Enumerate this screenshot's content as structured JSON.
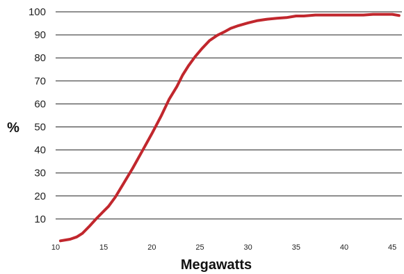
{
  "chart_data": {
    "type": "line",
    "title": "",
    "xlabel": "Megawatts",
    "ylabel": "%",
    "xlim": [
      10,
      46
    ],
    "ylim": [
      0,
      100
    ],
    "x_ticks": [
      10,
      15,
      20,
      25,
      30,
      35,
      40,
      45
    ],
    "y_ticks": [
      10,
      20,
      30,
      40,
      50,
      60,
      70,
      80,
      90,
      100
    ],
    "grid": "horizontal",
    "legend": "none",
    "series": [
      {
        "color": "#c1272d",
        "x": [
          10.5,
          11.5,
          12.2,
          12.8,
          13.5,
          14.2,
          14.9,
          15.5,
          16.2,
          17.0,
          18.0,
          19.0,
          20.0,
          21.0,
          21.8,
          22.6,
          23.2,
          23.8,
          24.5,
          25.2,
          26.0,
          26.8,
          27.5,
          28.2,
          29.0,
          30.0,
          31.0,
          32.0,
          33.0,
          34.0,
          35.0,
          35.8,
          37.0,
          38.0,
          40.0,
          42.0,
          43.0,
          44.0,
          45.0,
          45.7
        ],
        "y": [
          0.5,
          1.2,
          2.2,
          3.8,
          6.8,
          10.0,
          13.0,
          15.5,
          19.5,
          25.0,
          32.0,
          39.5,
          47.0,
          55.0,
          62.0,
          67.5,
          72.5,
          76.5,
          80.5,
          84.0,
          87.5,
          89.8,
          91.2,
          92.8,
          94.0,
          95.2,
          96.2,
          96.8,
          97.2,
          97.5,
          98.2,
          98.2,
          98.6,
          98.6,
          98.6,
          98.6,
          98.9,
          98.9,
          98.9,
          98.4
        ]
      }
    ]
  }
}
